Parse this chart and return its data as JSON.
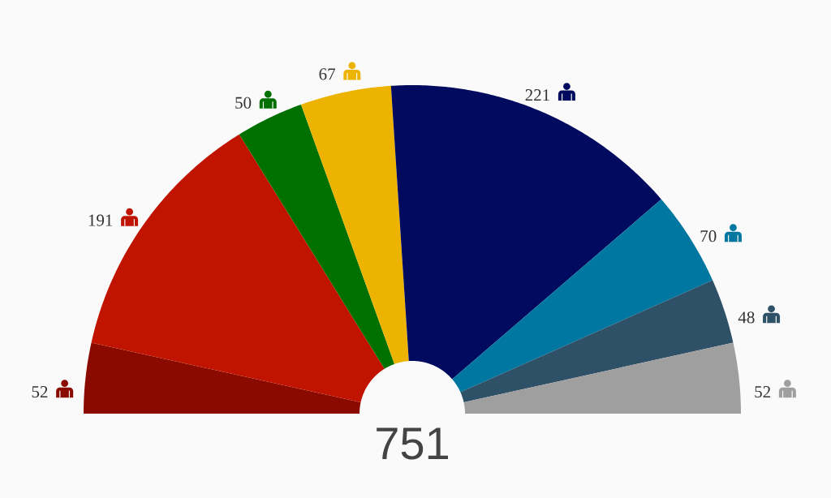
{
  "chart_data": {
    "type": "donut",
    "categories": [
      null,
      null,
      null,
      null,
      null,
      null,
      null,
      null
    ],
    "values": [
      52,
      191,
      50,
      67,
      221,
      70,
      48,
      52
    ],
    "colors": [
      "#8b0a00",
      "#c11400",
      "#007000",
      "#ecb400",
      "#000a5e",
      "#0077a0",
      "#2e5168",
      "#a09fa0"
    ],
    "data_labels": true,
    "annotations": [
      "751"
    ]
  }
}
